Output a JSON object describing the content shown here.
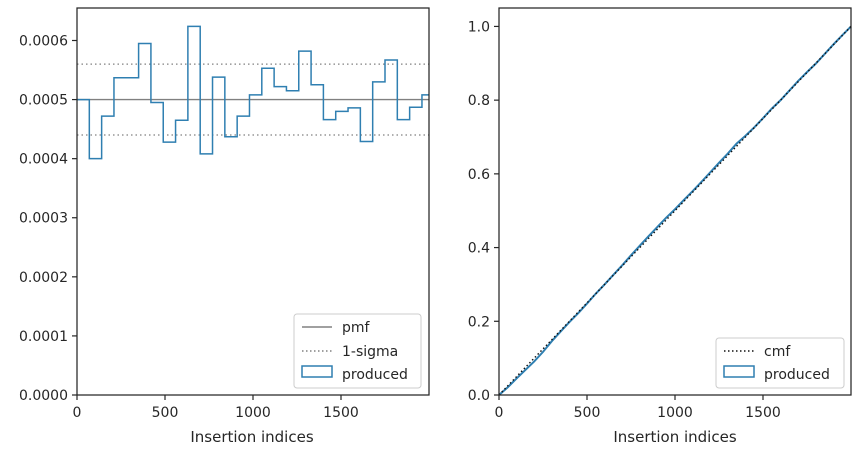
{
  "colors": {
    "histogram": "#2f7fb1",
    "reference": "#808080",
    "cmf": "#111111",
    "spine": "#262626"
  },
  "chart_data": [
    {
      "type": "step",
      "xlabel": "Insertion indices",
      "ylabel": "",
      "xlim": [
        0,
        2000
      ],
      "ylim": [
        0,
        0.000655
      ],
      "xticks": [
        0,
        500,
        1000,
        1500
      ],
      "xtick_labels": [
        "0",
        "500",
        "1000",
        "1500"
      ],
      "yticks": [
        0,
        0.0001,
        0.0002,
        0.0003,
        0.0004,
        0.0005,
        0.0006
      ],
      "ytick_labels": [
        "0.0000",
        "0.0001",
        "0.0002",
        "0.0003",
        "0.0004",
        "0.0005",
        "0.0006"
      ],
      "legend_position": "lower-right",
      "legend": [
        "pmf",
        "1-sigma",
        "produced"
      ],
      "pmf": 0.0005,
      "sigma_band": [
        0.00044,
        0.00056
      ],
      "bin_edges": [
        0,
        70,
        140,
        210,
        280,
        350,
        420,
        490,
        560,
        630,
        700,
        770,
        840,
        910,
        980,
        1050,
        1120,
        1190,
        1260,
        1330,
        1400,
        1470,
        1540,
        1610,
        1680,
        1750,
        1820,
        1890,
        1960,
        2000
      ],
      "values": [
        0.0005,
        0.0004,
        0.000472,
        0.000537,
        0.000537,
        0.000595,
        0.000495,
        0.000428,
        0.000465,
        0.000624,
        0.000408,
        0.000538,
        0.000437,
        0.000472,
        0.000508,
        0.000553,
        0.000522,
        0.000515,
        0.000582,
        0.000525,
        0.000466,
        0.00048,
        0.000486,
        0.000429,
        0.00053,
        0.000567,
        0.000466,
        0.000487,
        0.000508
      ]
    },
    {
      "type": "step",
      "xlabel": "Insertion indices",
      "ylabel": "",
      "xlim": [
        0,
        2000
      ],
      "ylim": [
        0,
        1.05
      ],
      "xticks": [
        0,
        500,
        1000,
        1500
      ],
      "xtick_labels": [
        "0",
        "500",
        "1000",
        "1500"
      ],
      "yticks": [
        0,
        0.2,
        0.4,
        0.6,
        0.8,
        1.0
      ],
      "ytick_labels": [
        "0.0",
        "0.2",
        "0.4",
        "0.6",
        "0.8",
        "1.0"
      ],
      "legend_position": "lower-right",
      "legend": [
        "cmf",
        "produced"
      ],
      "cmf": {
        "x": [
          0,
          2000
        ],
        "y": [
          0,
          1
        ]
      },
      "x": [
        0,
        50,
        100,
        150,
        200,
        250,
        300,
        350,
        400,
        450,
        500,
        550,
        600,
        650,
        700,
        750,
        800,
        850,
        900,
        950,
        1000,
        1050,
        1100,
        1150,
        1200,
        1250,
        1300,
        1350,
        1400,
        1450,
        1500,
        1550,
        1600,
        1650,
        1700,
        1750,
        1800,
        1850,
        1900,
        1950,
        2000
      ],
      "y": [
        0,
        0.021,
        0.045,
        0.068,
        0.091,
        0.117,
        0.146,
        0.172,
        0.198,
        0.222,
        0.248,
        0.275,
        0.3,
        0.326,
        0.352,
        0.379,
        0.405,
        0.431,
        0.456,
        0.481,
        0.504,
        0.529,
        0.553,
        0.578,
        0.604,
        0.63,
        0.655,
        0.682,
        0.703,
        0.726,
        0.751,
        0.777,
        0.8,
        0.826,
        0.852,
        0.876,
        0.899,
        0.925,
        0.951,
        0.976,
        1.0
      ]
    }
  ]
}
